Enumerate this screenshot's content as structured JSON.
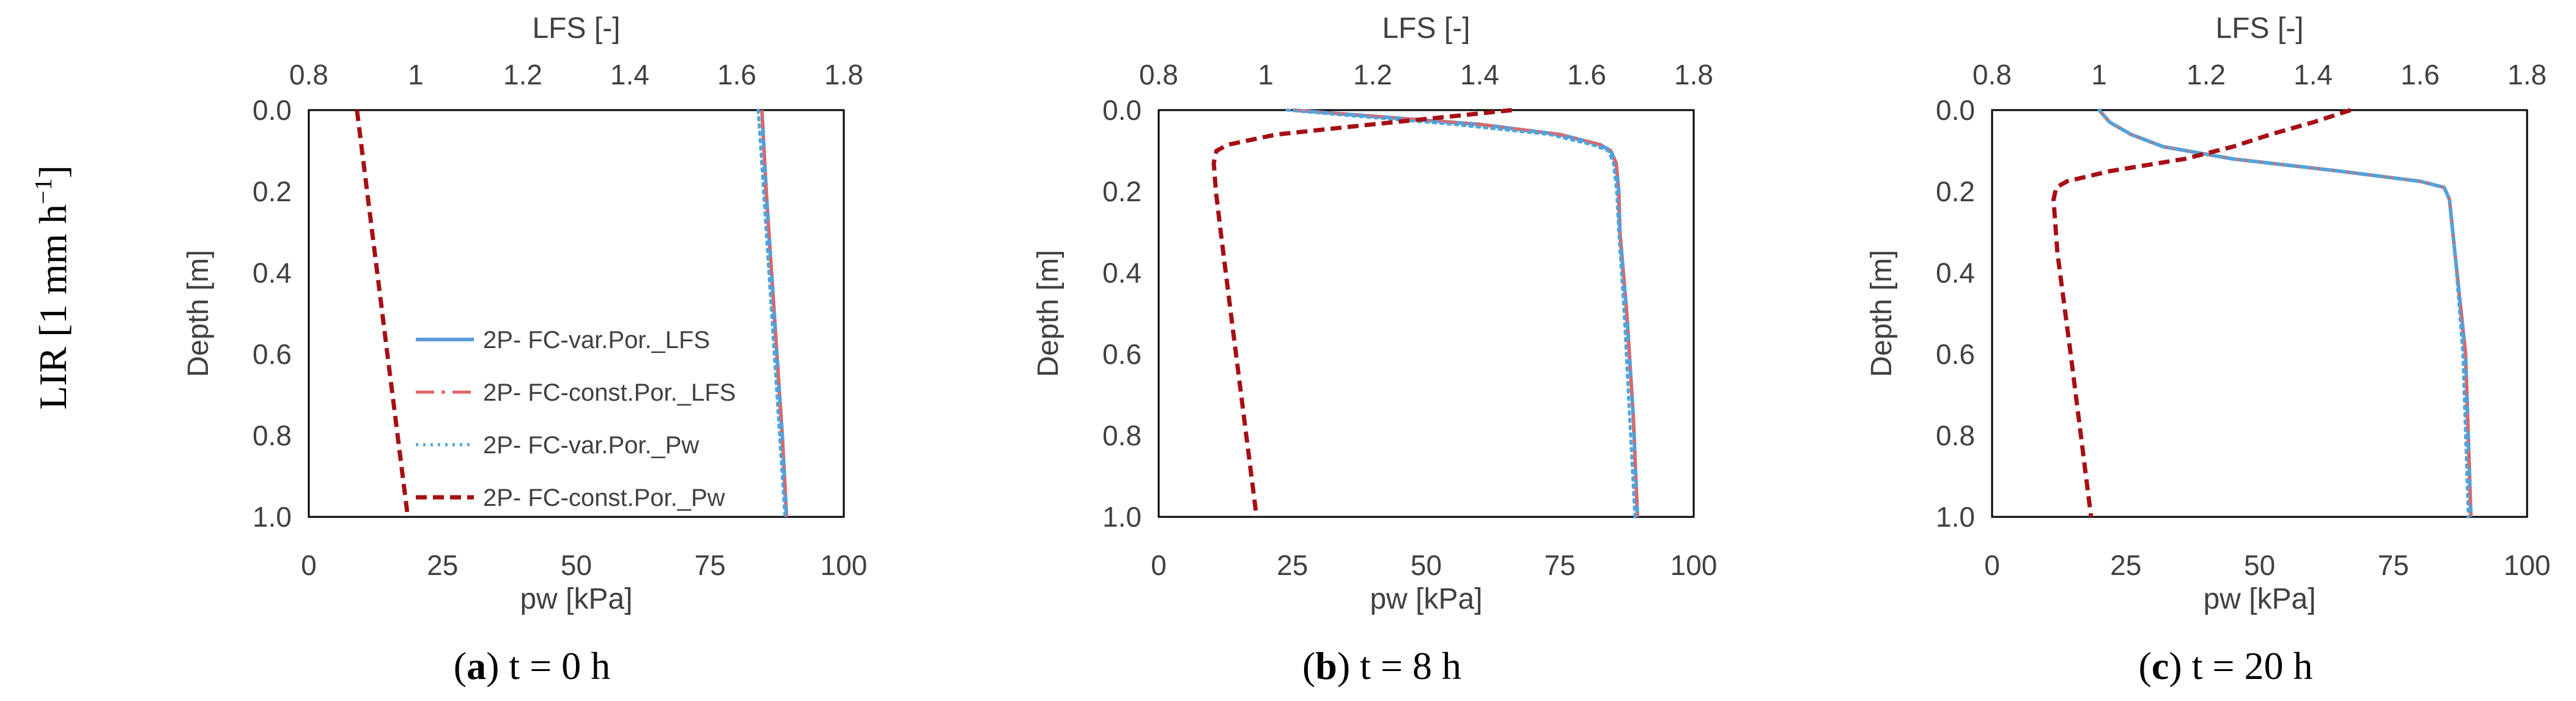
{
  "row_label": {
    "text": "LIR [1 mm h",
    "sup": "−1",
    "close": "]"
  },
  "colors": {
    "var_lfs": "#5b9bd5",
    "const_lfs": "#e06666",
    "var_pw": "#4ea6dc",
    "const_pw": "#a50f15"
  },
  "legend": [
    {
      "label": "2P- FC-var.Por._LFS",
      "key": "var_lfs",
      "style": "solid"
    },
    {
      "label": "2P- FC-const.Por._LFS",
      "key": "const_lfs",
      "style": "dashdot"
    },
    {
      "label": "2P- FC-var.Por._Pw",
      "key": "var_pw",
      "style": "dotted"
    },
    {
      "label": "2P- FC-const.Por._Pw",
      "key": "const_pw",
      "style": "dashed"
    }
  ],
  "chart_data": [
    {
      "type": "line",
      "caption_letter": "a",
      "caption_rest": " t = 0 h",
      "top_axis": {
        "label": "LFS [-]",
        "range": [
          0.8,
          1.8
        ],
        "ticks": [
          "0.8",
          "1",
          "1.2",
          "1.4",
          "1.6",
          "1.8"
        ],
        "tick_values": [
          0.8,
          1.0,
          1.2,
          1.4,
          1.6,
          1.8
        ]
      },
      "bottom_axis": {
        "label": "pw [kPa]",
        "range": [
          0,
          100
        ],
        "ticks": [
          "0",
          "25",
          "50",
          "75",
          "100"
        ],
        "tick_values": [
          0,
          25,
          50,
          75,
          100
        ]
      },
      "y_axis": {
        "label": "Depth [m]",
        "range": [
          0,
          1
        ],
        "inverted": true,
        "ticks": [
          "0.0",
          "0.2",
          "0.4",
          "0.6",
          "0.8",
          "1.0"
        ],
        "tick_values": [
          0.0,
          0.2,
          0.4,
          0.6,
          0.8,
          1.0
        ]
      },
      "legend_shown": true,
      "series": [
        {
          "name": "2P- FC-var.Por._LFS",
          "axis": "top",
          "key": "var_lfs",
          "x": [
            1.647,
            1.655,
            1.665,
            1.675,
            1.685,
            1.693
          ],
          "y": [
            0.0,
            0.2,
            0.4,
            0.6,
            0.8,
            1.0
          ]
        },
        {
          "name": "2P- FC-const.Por._LFS",
          "axis": "top",
          "key": "const_lfs",
          "x": [
            1.647,
            1.655,
            1.665,
            1.675,
            1.685,
            1.693
          ],
          "y": [
            0.0,
            0.2,
            0.4,
            0.6,
            0.8,
            1.0
          ]
        },
        {
          "name": "2P- FC-var.Por._Pw",
          "axis": "bottom",
          "key": "var_pw",
          "x": [
            84.0,
            85.0,
            86.0,
            87.0,
            88.0,
            89.0
          ],
          "y": [
            0.0,
            0.2,
            0.4,
            0.6,
            0.8,
            1.0
          ]
        },
        {
          "name": "2P- FC-const.Por._Pw",
          "axis": "bottom",
          "key": "const_pw",
          "x": [
            9.0,
            10.9,
            12.8,
            14.7,
            16.6,
            18.5
          ],
          "y": [
            0.0,
            0.2,
            0.4,
            0.6,
            0.8,
            1.0
          ]
        }
      ]
    },
    {
      "type": "line",
      "caption_letter": "b",
      "caption_rest": " t = 8 h",
      "top_axis": {
        "label": "LFS [-]",
        "range": [
          0.8,
          1.8
        ],
        "ticks": [
          "0.8",
          "1",
          "1.2",
          "1.4",
          "1.6",
          "1.8"
        ],
        "tick_values": [
          0.8,
          1.0,
          1.2,
          1.4,
          1.6,
          1.8
        ]
      },
      "bottom_axis": {
        "label": "pw [kPa]",
        "range": [
          0,
          100
        ],
        "ticks": [
          "0",
          "25",
          "50",
          "75",
          "100"
        ],
        "tick_values": [
          0,
          25,
          50,
          75,
          100
        ]
      },
      "y_axis": {
        "label": "Depth [m]",
        "range": [
          0,
          1
        ],
        "inverted": true,
        "ticks": [
          "0.0",
          "0.2",
          "0.4",
          "0.6",
          "0.8",
          "1.0"
        ],
        "tick_values": [
          0.0,
          0.2,
          0.4,
          0.6,
          0.8,
          1.0
        ]
      },
      "legend_shown": false,
      "series": [
        {
          "name": "2P- FC-var.Por._LFS",
          "axis": "top",
          "key": "var_lfs",
          "x": [
            1.05,
            1.2,
            1.4,
            1.55,
            1.625,
            1.645,
            1.655,
            1.66,
            1.662,
            1.675,
            1.687,
            1.695
          ],
          "y": [
            0.0,
            0.015,
            0.035,
            0.06,
            0.085,
            0.1,
            0.13,
            0.2,
            0.3,
            0.5,
            0.75,
            1.0
          ]
        },
        {
          "name": "2P- FC-const.Por._LFS",
          "axis": "top",
          "key": "const_lfs",
          "x": [
            1.05,
            1.2,
            1.4,
            1.55,
            1.625,
            1.645,
            1.655,
            1.66,
            1.662,
            1.675,
            1.687,
            1.695
          ],
          "y": [
            0.0,
            0.015,
            0.035,
            0.06,
            0.085,
            0.1,
            0.13,
            0.2,
            0.3,
            0.5,
            0.75,
            1.0
          ]
        },
        {
          "name": "2P- FC-var.Por._Pw",
          "axis": "bottom",
          "key": "var_pw",
          "x": [
            24.0,
            37.0,
            55.0,
            73.0,
            81.0,
            84.0,
            85.0,
            85.6,
            86.0,
            87.0,
            88.0,
            89.0
          ],
          "y": [
            0.0,
            0.015,
            0.035,
            0.06,
            0.085,
            0.1,
            0.13,
            0.2,
            0.3,
            0.5,
            0.75,
            1.0
          ]
        },
        {
          "name": "2P- FC-const.Por._Pw",
          "axis": "bottom",
          "key": "const_pw",
          "x": [
            66.0,
            55.0,
            40.0,
            22.0,
            13.0,
            10.8,
            10.3,
            10.7,
            11.6,
            13.5,
            15.9,
            18.3
          ],
          "y": [
            0.0,
            0.015,
            0.035,
            0.06,
            0.085,
            0.1,
            0.13,
            0.2,
            0.3,
            0.5,
            0.75,
            1.0
          ]
        }
      ]
    },
    {
      "type": "line",
      "caption_letter": "c",
      "caption_rest": " t = 20 h",
      "top_axis": {
        "label": "LFS [-]",
        "range": [
          0.8,
          1.8
        ],
        "ticks": [
          "0.8",
          "1",
          "1.2",
          "1.4",
          "1.6",
          "1.8"
        ],
        "tick_values": [
          0.8,
          1.0,
          1.2,
          1.4,
          1.6,
          1.8
        ]
      },
      "bottom_axis": {
        "label": "pw [kPa]",
        "range": [
          0,
          100
        ],
        "ticks": [
          "0",
          "25",
          "50",
          "75",
          "100"
        ],
        "tick_values": [
          0,
          25,
          50,
          75,
          100
        ]
      },
      "y_axis": {
        "label": "Depth [m]",
        "range": [
          0,
          1
        ],
        "inverted": true,
        "ticks": [
          "0.0",
          "0.2",
          "0.4",
          "0.6",
          "0.8",
          "1.0"
        ],
        "tick_values": [
          0.0,
          0.2,
          0.4,
          0.6,
          0.8,
          1.0
        ]
      },
      "legend_shown": false,
      "series": [
        {
          "name": "2P- FC-var.Por._LFS",
          "axis": "top",
          "key": "var_lfs",
          "x": [
            1.0,
            1.02,
            1.06,
            1.12,
            1.25,
            1.45,
            1.6,
            1.645,
            1.655,
            1.665,
            1.685,
            1.695
          ],
          "y": [
            0.0,
            0.03,
            0.06,
            0.09,
            0.12,
            0.15,
            0.175,
            0.19,
            0.22,
            0.35,
            0.6,
            1.0
          ]
        },
        {
          "name": "2P- FC-const.Por._LFS",
          "axis": "top",
          "key": "const_lfs",
          "x": [
            1.0,
            1.02,
            1.06,
            1.12,
            1.25,
            1.45,
            1.6,
            1.645,
            1.655,
            1.665,
            1.685,
            1.695
          ],
          "y": [
            0.0,
            0.03,
            0.06,
            0.09,
            0.12,
            0.15,
            0.175,
            0.19,
            0.22,
            0.35,
            0.6,
            1.0
          ]
        },
        {
          "name": "2P- FC-var.Por._Pw",
          "axis": "bottom",
          "key": "var_pw",
          "x": [
            20.0,
            22.0,
            26.0,
            32.0,
            45.0,
            65.0,
            80.0,
            84.5,
            85.5,
            86.5,
            88.0,
            89.0
          ],
          "y": [
            0.0,
            0.03,
            0.06,
            0.09,
            0.12,
            0.15,
            0.175,
            0.19,
            0.22,
            0.35,
            0.6,
            1.0
          ]
        },
        {
          "name": "2P- FC-const.Por._Pw",
          "axis": "bottom",
          "key": "const_pw",
          "x": [
            67.0,
            60.0,
            52.0,
            45.0,
            36.0,
            22.0,
            14.0,
            12.0,
            11.5,
            12.2,
            14.7,
            18.5
          ],
          "y": [
            0.0,
            0.03,
            0.06,
            0.09,
            0.12,
            0.15,
            0.175,
            0.19,
            0.22,
            0.35,
            0.6,
            1.0
          ]
        }
      ]
    }
  ]
}
